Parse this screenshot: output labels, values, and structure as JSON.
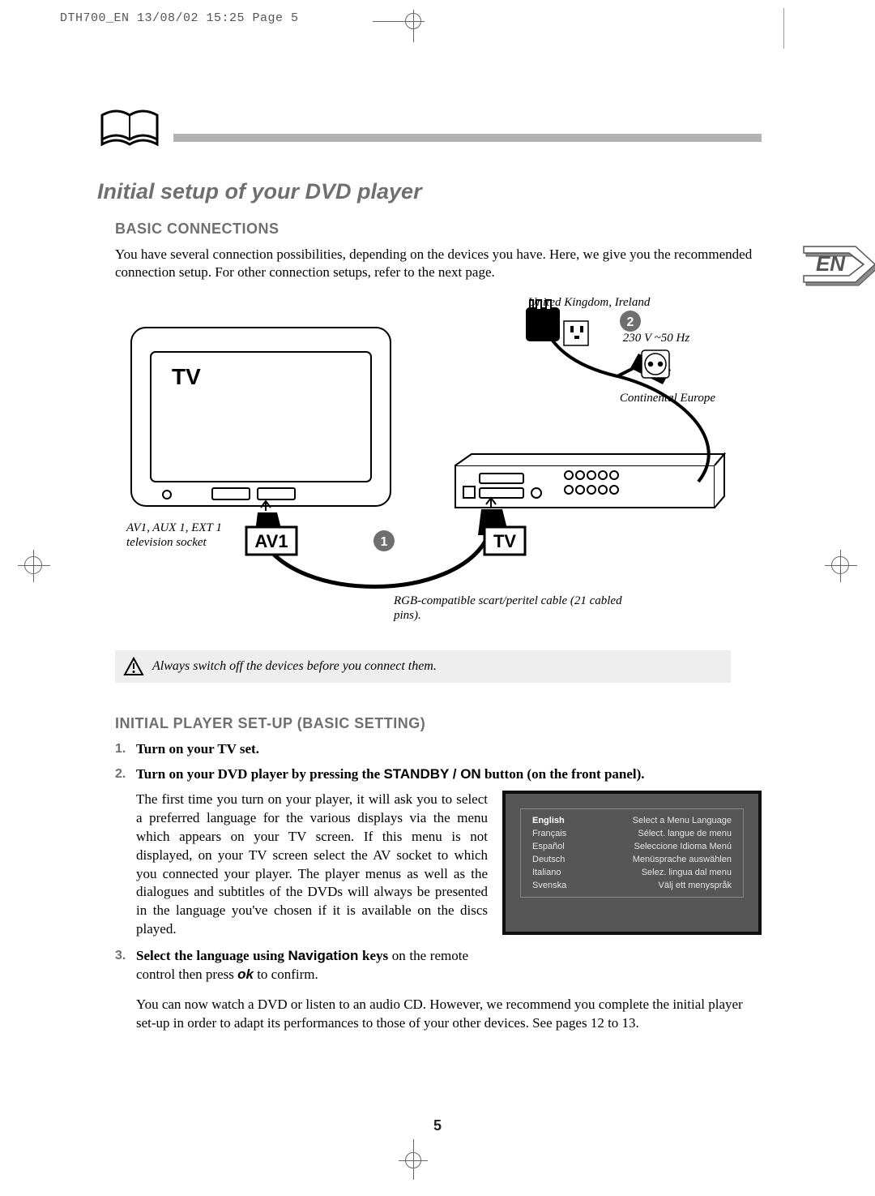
{
  "print_header": "DTH700_EN  13/08/02 15:25  Page 5",
  "lang_badge": "EN",
  "h1": "Initial setup of your DVD player",
  "h2_connections": "BASIC CONNECTIONS",
  "intro_text": "You have several connection possibilities, depending on the devices you have. Here, we give you the recommended connection setup. For other connection setups, refer to the next page.",
  "diagram": {
    "tv_label": "TV",
    "av1_label": "AV1",
    "port_tv_label": "TV",
    "step1": "1",
    "step2": "2",
    "uk_label": "United Kingdom, Ireland",
    "europe_label": "Continental Europe",
    "voltage": "230 V ~50 Hz",
    "socket_note": "AV1, AUX 1, EXT 1 television socket",
    "cable_note": "RGB-compatible scart/peritel cable (21 cabled pins).",
    "colors": {
      "stroke": "#000000",
      "fill_white": "#ffffff",
      "accent": "#6f6f6f",
      "badge_fill": "#6f6f6f"
    }
  },
  "caution": "Always switch off the devices before you connect them.",
  "h2_setup": "INITIAL PLAYER SET-UP (BASIC SETTING)",
  "steps": {
    "s1_num": "1.",
    "s1": "Turn on your TV set.",
    "s2_num": "2.",
    "s2_a": "Turn on your DVD player by pressing the ",
    "s2_b": "STANDBY / ON",
    "s2_c": " button (on the front panel).",
    "s2_para": "The first time you turn on your player, it will ask you to select a preferred language for the various displays via the menu which appears on your TV screen. If this menu is not displayed, on your TV screen select the AV socket to which you connected your player. The player menus as well as the dialogues and subtitles of the DVDs will always be presented in the language you've chosen if it is available on the discs played.",
    "s3_num": "3.",
    "s3_a": "Select the language using ",
    "s3_b": "Navigation",
    "s3_c": " keys",
    "s3_d": " on the remote control then press ",
    "s3_e": "ok",
    "s3_f": " to confirm.",
    "after": "You can now watch a DVD or listen to an audio CD. However, we recommend you complete the initial player set-up in order to adapt its performances to those of your other devices. See pages 12 to 13."
  },
  "menu": {
    "bg": "#565656",
    "border": "#111111",
    "text": "#e6e6e6",
    "rows": [
      {
        "left": "English",
        "right": "Select a Menu Language"
      },
      {
        "left": "Français",
        "right": "Sélect. langue de menu"
      },
      {
        "left": "Español",
        "right": "Seleccione Idioma Menú"
      },
      {
        "left": "Deutsch",
        "right": "Menüsprache auswählen"
      },
      {
        "left": "Italiano",
        "right": "Selez. lingua dal menu"
      },
      {
        "left": "Svenska",
        "right": "Välj ett menyspråk"
      }
    ]
  },
  "page_number": "5"
}
